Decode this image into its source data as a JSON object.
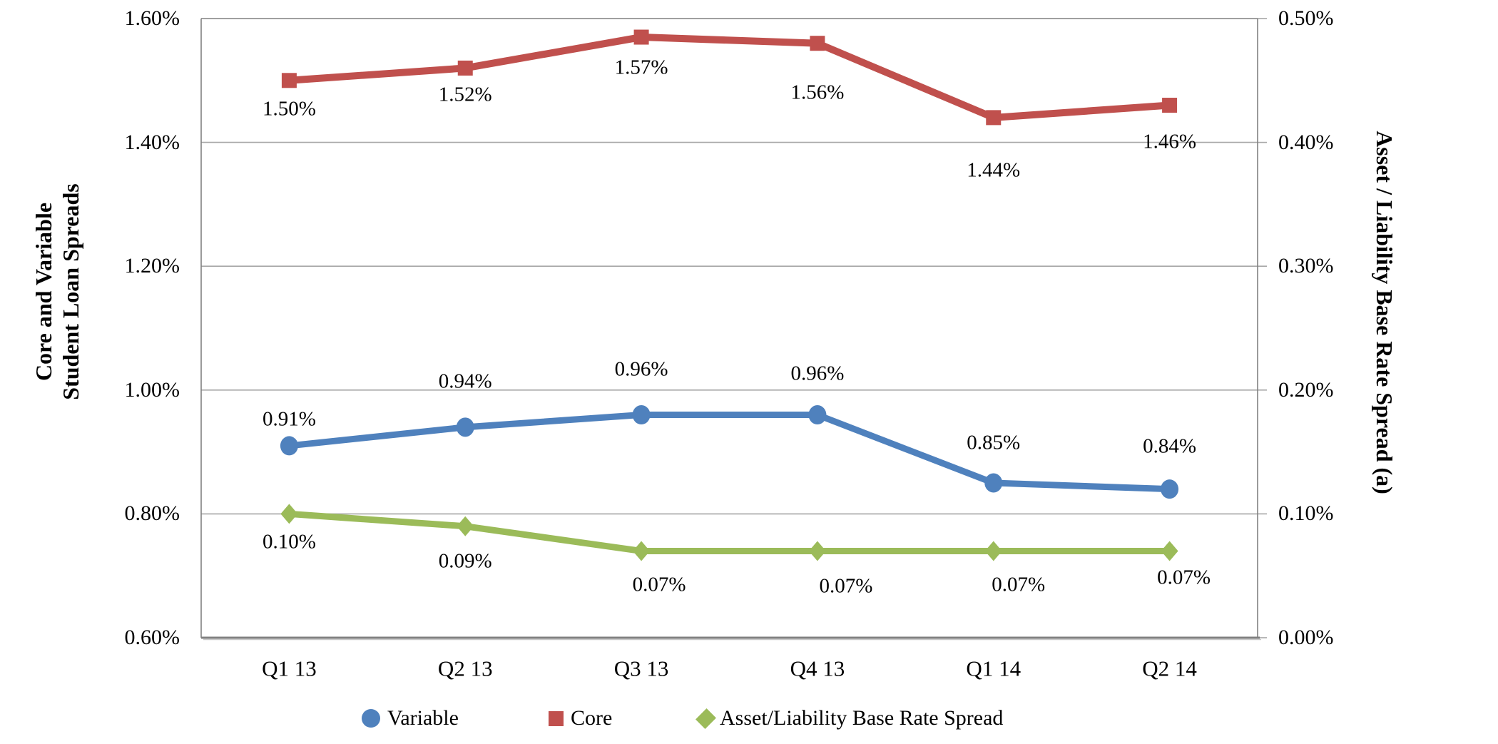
{
  "chart_data": {
    "type": "line",
    "categories": [
      "Q1 13",
      "Q2 13",
      "Q3 13",
      "Q4 13",
      "Q1 14",
      "Q2 14"
    ],
    "series": [
      {
        "name": "Variable",
        "axis": "left",
        "color": "#4F81BD",
        "marker": "circle",
        "values": [
          0.91,
          0.94,
          0.96,
          0.96,
          0.85,
          0.84
        ],
        "labels": [
          "0.91%",
          "0.94%",
          "0.96%",
          "0.96%",
          "0.85%",
          "0.84%"
        ]
      },
      {
        "name": "Core",
        "axis": "left",
        "color": "#C0504D",
        "marker": "square",
        "values": [
          1.5,
          1.52,
          1.57,
          1.56,
          1.44,
          1.46
        ],
        "labels": [
          "1.50%",
          "1.52%",
          "1.57%",
          "1.56%",
          "1.44%",
          "1.46%"
        ]
      },
      {
        "name": "Asset/Liability Base Rate Spread",
        "axis": "right",
        "color": "#9BBB59",
        "marker": "diamond",
        "values": [
          0.1,
          0.09,
          0.07,
          0.07,
          0.07,
          0.07
        ],
        "labels": [
          "0.10%",
          "0.09%",
          "0.07%",
          "0.07%",
          "0.07%",
          "0.07%"
        ]
      }
    ],
    "left_axis": {
      "title_lines": [
        "Core and Variable",
        "Student Loan Spreads"
      ],
      "min": 0.6,
      "max": 1.6,
      "ticks": [
        "1.60%",
        "1.40%",
        "1.20%",
        "1.00%",
        "0.80%",
        "0.60%"
      ]
    },
    "right_axis": {
      "title": "Asset / Liability Base Rate Spread (a)",
      "min": 0.0,
      "max": 0.5,
      "ticks": [
        "0.50%",
        "0.40%",
        "0.30%",
        "0.20%",
        "0.10%",
        "0.00%"
      ]
    },
    "legend": [
      {
        "label": "Variable",
        "color": "#4F81BD",
        "marker": "circle"
      },
      {
        "label": "Core",
        "color": "#C0504D",
        "marker": "square"
      },
      {
        "label": "Asset/Liability Base Rate Spread",
        "color": "#9BBB59",
        "marker": "diamond"
      }
    ],
    "grid": true,
    "legend_position": "bottom"
  },
  "colors": {
    "gridline": "#A6A6A6",
    "plot_border": "#808080",
    "axis_shadow": "#C8C8C8",
    "text": "#000000",
    "background": "#FFFFFF"
  }
}
